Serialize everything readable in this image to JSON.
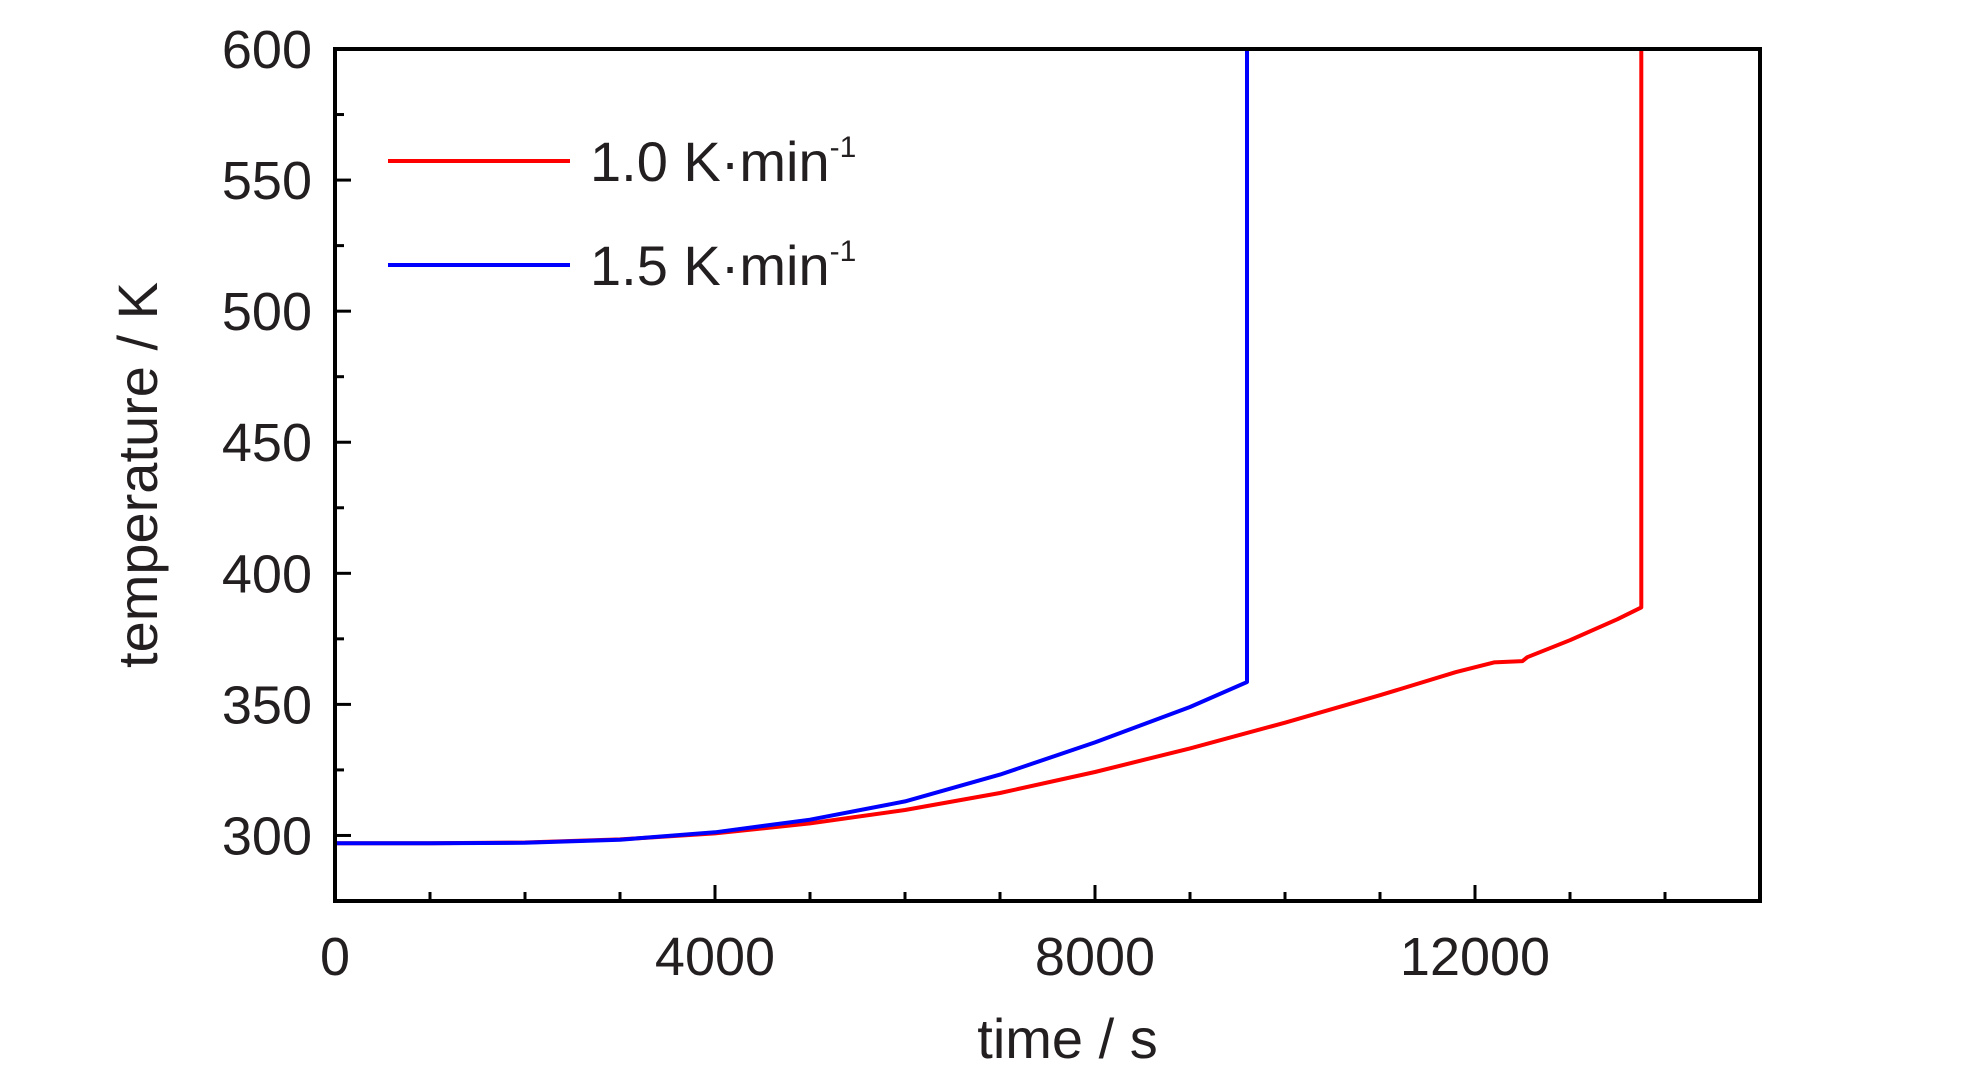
{
  "chart_data": {
    "type": "line",
    "xlabel": "time / s",
    "ylabel": "temperature / K",
    "xlim": [
      0,
      15000
    ],
    "ylim": [
      275,
      600
    ],
    "x_ticks": [
      0,
      4000,
      8000,
      12000
    ],
    "x_tick_labels": [
      "0",
      "4000",
      "8000",
      "12000"
    ],
    "x_minor_step": 1000,
    "y_ticks": [
      300,
      350,
      400,
      450,
      500,
      550,
      600
    ],
    "y_tick_labels": [
      "300",
      "350",
      "400",
      "450",
      "500",
      "550",
      "600"
    ],
    "y_minor_step": 25,
    "grid": false,
    "legend_position": "top-left",
    "series": [
      {
        "name_main": "1.0 K·min",
        "name_sup": "-1",
        "color": "#ff0000",
        "points": [
          [
            0,
            297
          ],
          [
            1000,
            297
          ],
          [
            2000,
            297.3
          ],
          [
            3000,
            298.5
          ],
          [
            4000,
            300.8
          ],
          [
            5000,
            304.6
          ],
          [
            6000,
            309.7
          ],
          [
            7000,
            316.2
          ],
          [
            8000,
            324.2
          ],
          [
            9000,
            333.2
          ],
          [
            10000,
            343
          ],
          [
            11000,
            353.5
          ],
          [
            11800,
            362.3
          ],
          [
            12200,
            366
          ],
          [
            12500,
            366.5
          ],
          [
            12550,
            368
          ],
          [
            13000,
            374.5
          ],
          [
            13500,
            382.5
          ],
          [
            13750,
            387
          ],
          [
            13750,
            600
          ]
        ]
      },
      {
        "name_main": "1.5 K·min",
        "name_sup": "-1",
        "color": "#0000ff",
        "points": [
          [
            0,
            297
          ],
          [
            1000,
            297
          ],
          [
            2000,
            297.2
          ],
          [
            3000,
            298.4
          ],
          [
            4000,
            301.2
          ],
          [
            5000,
            306
          ],
          [
            6000,
            313
          ],
          [
            7000,
            323.2
          ],
          [
            8000,
            335.5
          ],
          [
            9000,
            349
          ],
          [
            9600,
            358.5
          ],
          [
            9600,
            600
          ]
        ]
      }
    ]
  }
}
